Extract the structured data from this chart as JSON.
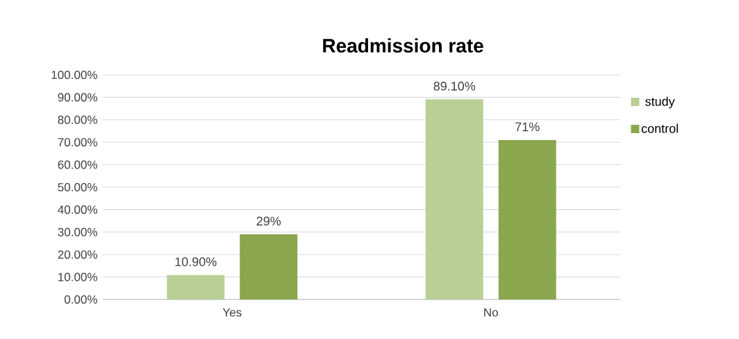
{
  "chart_data": {
    "type": "bar",
    "title": "Readmission rate",
    "categories": [
      "Yes",
      "No"
    ],
    "series": [
      {
        "name": "study",
        "color": "#b9cf96",
        "values": [
          10.9,
          89.1
        ],
        "value_labels": [
          "10.90%",
          "89.10%"
        ]
      },
      {
        "name": "control",
        "color": "#8aa74e",
        "values": [
          29,
          71
        ],
        "value_labels": [
          "29%",
          "71%"
        ]
      }
    ],
    "ylim": [
      0,
      100
    ],
    "yticks": [
      {
        "value": 0,
        "label": "0.00%"
      },
      {
        "value": 10,
        "label": "10.00%"
      },
      {
        "value": 20,
        "label": "20.00%"
      },
      {
        "value": 30,
        "label": "30.00%"
      },
      {
        "value": 40,
        "label": "40.00%"
      },
      {
        "value": 50,
        "label": "50.00%"
      },
      {
        "value": 60,
        "label": "60.00%"
      },
      {
        "value": 70,
        "label": "70.00%"
      },
      {
        "value": 80,
        "label": "80.00%"
      },
      {
        "value": 90,
        "label": "90.00%"
      },
      {
        "value": 100,
        "label": "100.00%"
      }
    ],
    "grid": "y",
    "legend": "right"
  }
}
